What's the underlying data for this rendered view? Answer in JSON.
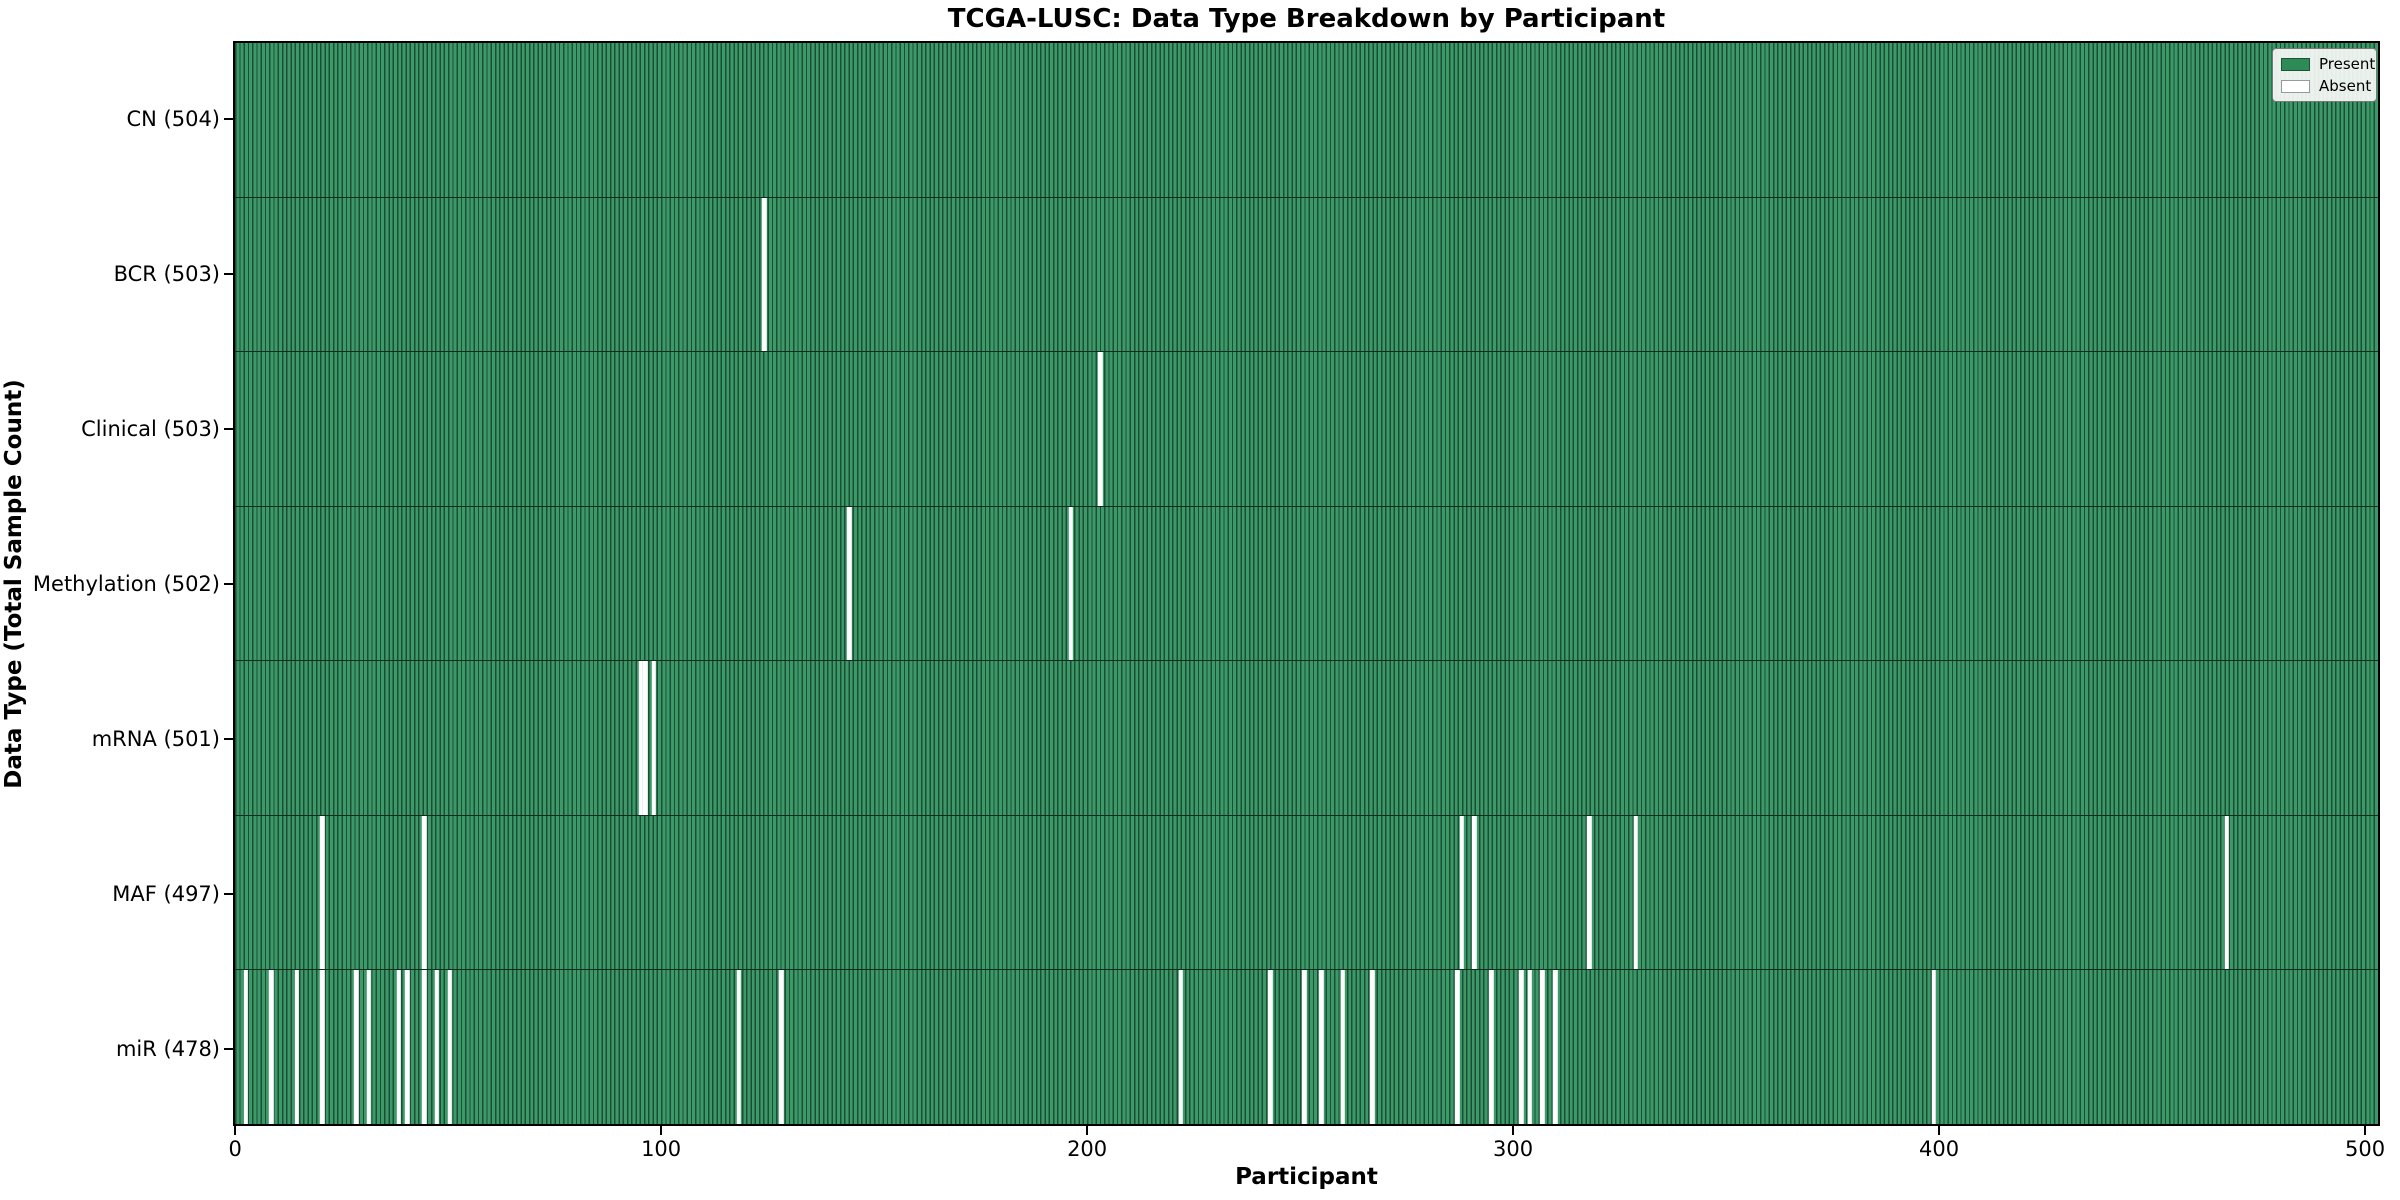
{
  "title": "TCGA-LUSC: Data Type Breakdown by Participant",
  "x_axis_label": "Participant",
  "y_axis_label": "Data Type (Total Sample Count)",
  "legend": {
    "present_label": "Present",
    "absent_label": "Absent"
  },
  "colors": {
    "present_fill": "#3c9a69",
    "present_edge": "#1d4d35",
    "absent": "#ffffff",
    "legend_present_swatch": "#2e8b57",
    "row_separator": "#0f2d1e",
    "axis": "#000000"
  },
  "chart_data": {
    "type": "heatmap",
    "title": "TCGA-LUSC: Data Type Breakdown by Participant",
    "xlabel": "Participant",
    "ylabel": "Data Type (Total Sample Count)",
    "legend": [
      "Present",
      "Absent"
    ],
    "legend_position": "upper right",
    "grid": false,
    "n_participants": 504,
    "x_ticks": [
      0,
      100,
      200,
      300,
      400,
      500
    ],
    "x_range": [
      0,
      504
    ],
    "rows": [
      {
        "data_type": "CN",
        "label": "CN (504)",
        "total_sample_count": 504,
        "absent_count": 0,
        "absent_participants": []
      },
      {
        "data_type": "BCR",
        "label": "BCR (503)",
        "total_sample_count": 503,
        "absent_count": 1,
        "absent_participants": [
          124
        ]
      },
      {
        "data_type": "Clinical",
        "label": "Clinical (503)",
        "total_sample_count": 503,
        "absent_count": 1,
        "absent_participants": [
          203
        ]
      },
      {
        "data_type": "Methylation",
        "label": "Methylation (502)",
        "total_sample_count": 502,
        "absent_count": 2,
        "absent_participants": [
          144,
          196
        ]
      },
      {
        "data_type": "mRNA",
        "label": "mRNA (501)",
        "total_sample_count": 501,
        "absent_count": 3,
        "absent_participants": [
          95,
          96,
          98
        ]
      },
      {
        "data_type": "MAF",
        "label": "MAF (497)",
        "total_sample_count": 497,
        "absent_count": 7,
        "absent_participants": [
          20,
          44,
          288,
          291,
          318,
          329,
          468
        ]
      },
      {
        "data_type": "miR",
        "label": "miR (478)",
        "total_sample_count": 478,
        "absent_count": 26,
        "absent_participants": [
          2,
          8,
          14,
          20,
          28,
          31,
          38,
          40,
          44,
          47,
          50,
          118,
          128,
          222,
          243,
          251,
          255,
          260,
          267,
          287,
          295,
          302,
          304,
          307,
          310,
          399
        ]
      }
    ]
  }
}
